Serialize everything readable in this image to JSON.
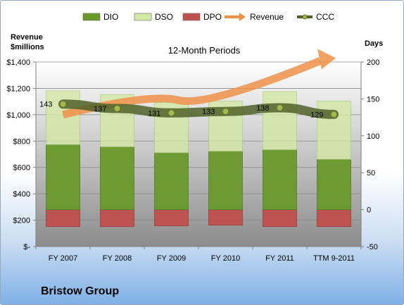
{
  "company": "Bristow Group",
  "chart_data": {
    "type": "bar",
    "title": "12-Month Periods",
    "y_left_label": [
      "Revenue",
      "$millions"
    ],
    "y_right_label": "Days",
    "categories": [
      "FY 2007",
      "FY 2008",
      "FY 2009",
      "FY 2010",
      "FY 2011",
      "TTM 9-2011"
    ],
    "left_ticks": [
      "$-",
      "$200",
      "$400",
      "$600",
      "$800",
      "$1,000",
      "$1,200",
      "$1,400"
    ],
    "right_ticks": [
      "-50",
      "0",
      "50",
      "100",
      "150",
      "200"
    ],
    "right_ylim": [
      -50,
      200
    ],
    "left_ylim": [
      0,
      1400
    ],
    "legend": [
      {
        "name": "DIO",
        "color": "#6a9a2c"
      },
      {
        "name": "DSO",
        "color": "#d3e8a6"
      },
      {
        "name": "DPO",
        "color": "#c0504d"
      },
      {
        "name": "Revenue",
        "color": "#f0914a"
      },
      {
        "name": "CCC",
        "color": "#4f6228"
      }
    ],
    "series": [
      {
        "name": "DIO",
        "axis": "right",
        "values": [
          88,
          85,
          77,
          79,
          81,
          68
        ]
      },
      {
        "name": "DSO",
        "axis": "right",
        "values": [
          73,
          71,
          68,
          68,
          79,
          79
        ]
      },
      {
        "name": "DPO",
        "axis": "right",
        "values": [
          -23,
          -23,
          -22,
          -21,
          -23,
          -23
        ]
      },
      {
        "name": "CCC",
        "axis": "right",
        "values": [
          143,
          137,
          131,
          133,
          138,
          129
        ]
      }
    ],
    "ccc_labels": [
      "143",
      "137",
      "131",
      "133",
      "138",
      "129"
    ],
    "revenue_arrow": {
      "axis": "left",
      "start": 1000,
      "end": 1430
    }
  }
}
